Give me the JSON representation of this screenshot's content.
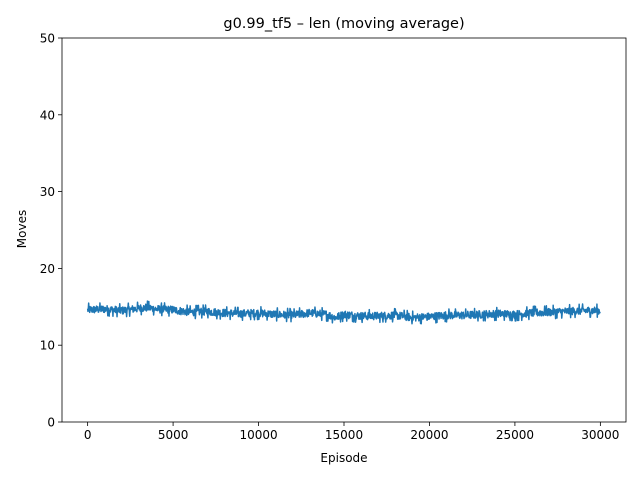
{
  "chart_data": {
    "type": "line",
    "title": "g0.99_tf5 – len (moving average)",
    "xlabel": "Episode",
    "ylabel": "Moves",
    "xlim": [
      -1500,
      31500
    ],
    "ylim": [
      0,
      50
    ],
    "xticks": [
      0,
      5000,
      10000,
      15000,
      20000,
      25000,
      30000
    ],
    "yticks": [
      0,
      10,
      20,
      30,
      40,
      50
    ],
    "grid": false,
    "legend": "none",
    "series": [
      {
        "color": "#1f77b4",
        "x": [
          0,
          1000,
          2000,
          3000,
          3500,
          4000,
          5000,
          6000,
          7000,
          8000,
          9000,
          10000,
          11000,
          12000,
          13000,
          14000,
          14500,
          15000,
          16000,
          17000,
          18000,
          19000,
          20000,
          21000,
          22000,
          23000,
          24000,
          25000,
          26000,
          27000,
          28000,
          29000,
          30000
        ],
        "y": [
          14.6,
          14.7,
          14.5,
          14.8,
          14.9,
          14.7,
          14.6,
          14.3,
          14.4,
          14.2,
          14.1,
          14.2,
          14.0,
          13.9,
          14.2,
          14.0,
          13.6,
          14.0,
          13.8,
          13.8,
          13.9,
          13.6,
          13.7,
          13.9,
          13.9,
          14.0,
          14.1,
          14.0,
          14.2,
          14.3,
          14.4,
          14.5,
          14.5
        ],
        "spread": 0.7
      }
    ]
  }
}
